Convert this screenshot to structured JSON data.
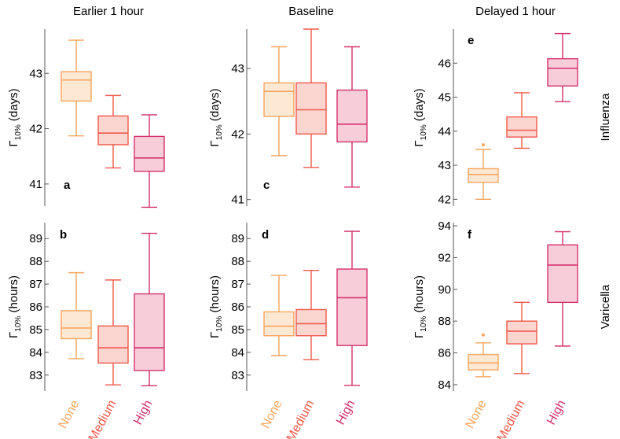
{
  "chart_data": {
    "type": "box",
    "column_titles": [
      "Earlier 1 hour",
      "Baseline",
      "Delayed 1 hour"
    ],
    "row_labels": [
      "Influenza",
      "Varicella"
    ],
    "categories": [
      "None",
      "Medium",
      "High"
    ],
    "colors": {
      "None": {
        "stroke": "#f7a55c",
        "fill": "#fde8d4"
      },
      "Medium": {
        "stroke": "#ef5a4b",
        "fill": "#fbd6d0"
      },
      "High": {
        "stroke": "#d4326c",
        "fill": "#f6cdd9"
      },
      "axis": "#555555",
      "text": "#000000"
    },
    "ylabel_gamma": "Γ",
    "ylabel_sub": "10%",
    "panels": [
      {
        "letter": "a",
        "row": 0,
        "col": 0,
        "ylabel_unit": "(days)",
        "ylim": [
          40.6,
          43.8
        ],
        "ticks": [
          41,
          42,
          43
        ],
        "tick_labels": [
          "41",
          "42",
          "43"
        ],
        "boxes": [
          {
            "min": 41.87,
            "q1": 42.5,
            "median": 42.88,
            "q3": 43.03,
            "max": 43.6,
            "outliers": []
          },
          {
            "min": 41.29,
            "q1": 41.71,
            "median": 41.92,
            "q3": 42.23,
            "max": 42.6,
            "outliers": []
          },
          {
            "min": 40.58,
            "q1": 41.23,
            "median": 41.47,
            "q3": 41.86,
            "max": 42.25,
            "outliers": []
          }
        ]
      },
      {
        "letter": "c",
        "row": 0,
        "col": 1,
        "ylabel_unit": "(days)",
        "ylim": [
          40.9,
          43.6
        ],
        "ticks": [
          41,
          42,
          43
        ],
        "tick_labels": [
          "41",
          "42",
          "43"
        ],
        "boxes": [
          {
            "min": 41.67,
            "q1": 42.27,
            "median": 42.65,
            "q3": 42.78,
            "max": 43.33,
            "outliers": []
          },
          {
            "min": 41.49,
            "q1": 42.0,
            "median": 42.37,
            "q3": 42.78,
            "max": 43.6,
            "outliers": []
          },
          {
            "min": 41.19,
            "q1": 41.88,
            "median": 42.15,
            "q3": 42.67,
            "max": 43.33,
            "outliers": []
          }
        ]
      },
      {
        "letter": "e",
        "row": 0,
        "col": 2,
        "ylabel_unit": "(days)",
        "ylim": [
          41.8,
          47.0
        ],
        "ticks": [
          42,
          43,
          44,
          45,
          46
        ],
        "tick_labels": [
          "42",
          "43",
          "44",
          "45",
          "46"
        ],
        "boxes": [
          {
            "min": 42.0,
            "q1": 42.5,
            "median": 42.73,
            "q3": 42.9,
            "max": 43.47,
            "outliers": [
              43.6
            ]
          },
          {
            "min": 43.5,
            "q1": 43.83,
            "median": 44.03,
            "q3": 44.42,
            "max": 45.13,
            "outliers": []
          },
          {
            "min": 44.87,
            "q1": 45.33,
            "median": 45.85,
            "q3": 46.13,
            "max": 46.87,
            "outliers": []
          }
        ]
      },
      {
        "letter": "b",
        "row": 1,
        "col": 0,
        "ylabel_unit": "(hours)",
        "ylim": [
          82.3,
          89.7
        ],
        "ticks": [
          83,
          84,
          85,
          86,
          87,
          88,
          89
        ],
        "tick_labels": [
          "83",
          "84",
          "85",
          "86",
          "87",
          "88",
          "89"
        ],
        "boxes": [
          {
            "min": 83.72,
            "q1": 84.6,
            "median": 85.07,
            "q3": 85.83,
            "max": 87.5,
            "outliers": []
          },
          {
            "min": 82.57,
            "q1": 83.53,
            "median": 84.2,
            "q3": 85.16,
            "max": 87.18,
            "outliers": []
          },
          {
            "min": 82.53,
            "q1": 83.2,
            "median": 84.2,
            "q3": 86.57,
            "max": 89.23,
            "outliers": []
          }
        ]
      },
      {
        "letter": "d",
        "row": 1,
        "col": 1,
        "ylabel_unit": "(hours)",
        "ylim": [
          82.3,
          89.7
        ],
        "ticks": [
          83,
          84,
          85,
          86,
          87,
          88,
          89
        ],
        "tick_labels": [
          "83",
          "84",
          "85",
          "86",
          "87",
          "88",
          "89"
        ],
        "boxes": [
          {
            "min": 83.86,
            "q1": 84.73,
            "median": 85.15,
            "q3": 85.78,
            "max": 87.38,
            "outliers": []
          },
          {
            "min": 83.68,
            "q1": 84.73,
            "median": 85.26,
            "q3": 85.88,
            "max": 87.6,
            "outliers": []
          },
          {
            "min": 82.55,
            "q1": 84.3,
            "median": 86.4,
            "q3": 87.66,
            "max": 89.32,
            "outliers": []
          }
        ]
      },
      {
        "letter": "f",
        "row": 1,
        "col": 2,
        "ylabel_unit": "(hours)",
        "ylim": [
          83.6,
          94.2
        ],
        "ticks": [
          84,
          86,
          88,
          90,
          92,
          94
        ],
        "tick_labels": [
          "84",
          "86",
          "88",
          "90",
          "92",
          "94"
        ],
        "boxes": [
          {
            "min": 84.5,
            "q1": 84.93,
            "median": 85.37,
            "q3": 85.9,
            "max": 86.63,
            "outliers": [
              87.13
            ]
          },
          {
            "min": 84.7,
            "q1": 86.57,
            "median": 87.37,
            "q3": 88.0,
            "max": 89.18,
            "outliers": []
          },
          {
            "min": 86.43,
            "q1": 89.18,
            "median": 91.53,
            "q3": 92.8,
            "max": 93.63,
            "outliers": []
          }
        ]
      }
    ]
  }
}
